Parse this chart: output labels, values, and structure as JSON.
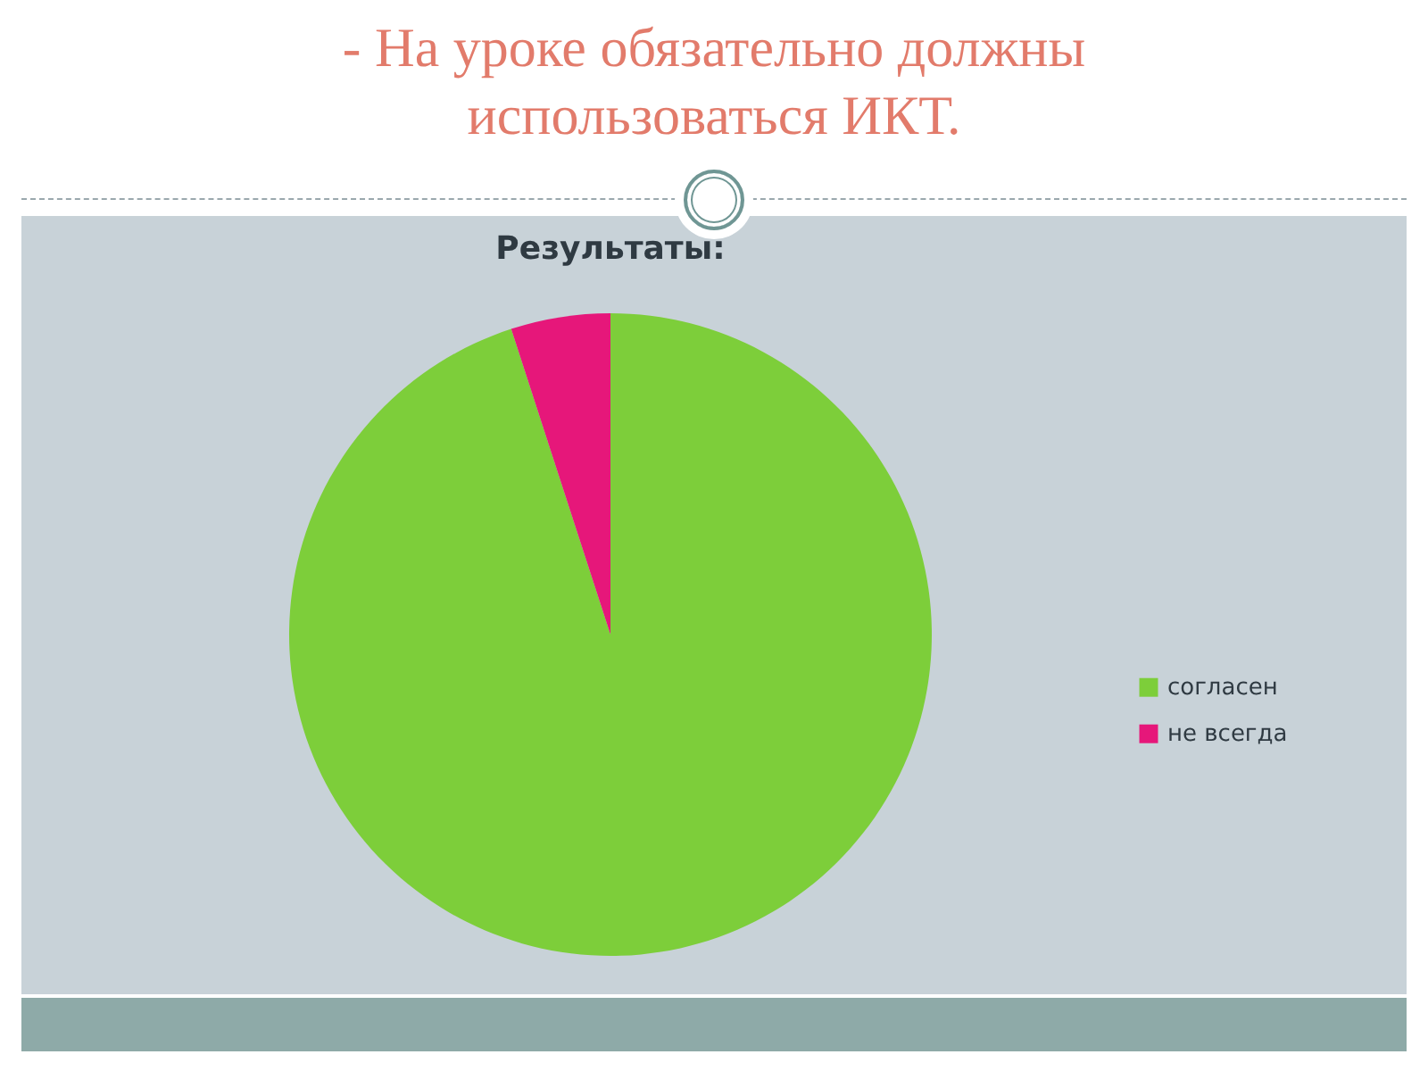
{
  "chart_data": {
    "type": "pie",
    "title": "- На уроке обязательно должны использоваться ИКТ.",
    "subtitle": "Результаты:",
    "categories": [
      "согласен",
      "не всегда"
    ],
    "values": [
      95,
      5
    ],
    "colors": [
      "#7dce3a",
      "#e6177a"
    ],
    "legend": "right"
  }
}
